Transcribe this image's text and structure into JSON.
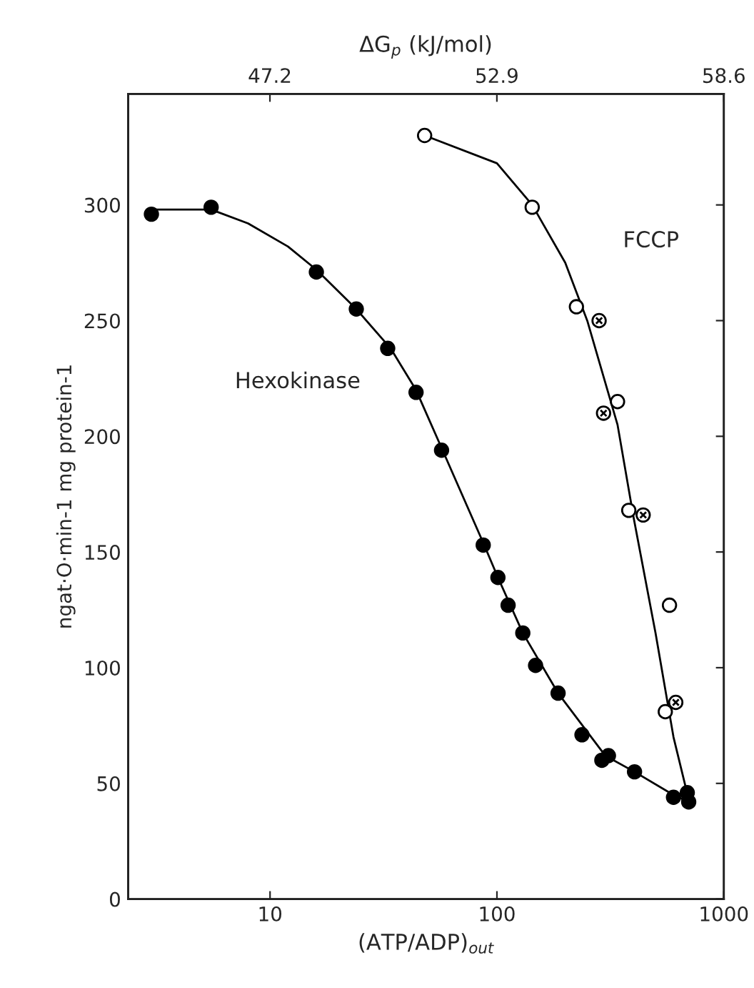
{
  "chart_data": {
    "type": "scatter",
    "xlabel": "(ATP/ADP)$_{out}$",
    "x2label": "ΔG$_{p}$ (kJ/mol)",
    "ylabel": "ngat·O·min-1 mg protein-1",
    "log": "x",
    "xlim": [
      2.37,
      1000
    ],
    "xticks": [
      10,
      100,
      1000
    ],
    "x2lim": [
      43.64,
      58.6
    ],
    "x2ticks": [
      47.2,
      52.9,
      58.6
    ],
    "ylim": [
      0,
      348
    ],
    "yticks": [
      0,
      50,
      100,
      150,
      200,
      250,
      300
    ],
    "grid": false,
    "legend": false,
    "series": [
      {
        "type": "line",
        "name": "Hexokinase",
        "color": "#000000",
        "marker": "none",
        "line_style": "solid",
        "x": [
          3,
          5.5,
          8,
          12,
          16,
          24,
          34,
          44,
          57,
          87,
          101,
          130,
          186,
          300,
          404,
          600,
          700
        ],
        "values": [
          298,
          298,
          292,
          282,
          272,
          255,
          238,
          220,
          195,
          154,
          139,
          115,
          89,
          62,
          55,
          45,
          42
        ]
      },
      {
        "type": "line",
        "name": "FCCP",
        "color": "#000000",
        "marker": "none",
        "line_style": "solid",
        "x": [
          48,
          100,
          143,
          200,
          250,
          340,
          400,
          500,
          600,
          700
        ],
        "values": [
          330,
          318,
          300,
          275,
          250,
          205,
          165,
          115,
          70,
          43
        ]
      },
      {
        "color": "#000000",
        "marker": "circle",
        "x": [
          3.0,
          5.5,
          16,
          24,
          33,
          44,
          57,
          87,
          101,
          112,
          130,
          148,
          186,
          237,
          290,
          310,
          404,
          600,
          690,
          700
        ],
        "values": [
          296,
          299,
          271,
          255,
          238,
          219,
          194,
          153,
          139,
          127,
          115,
          101,
          89,
          71,
          60,
          62,
          55,
          44,
          46,
          42
        ]
      },
      {
        "color": "#ffffff",
        "marker": "circle",
        "x": [
          48,
          143,
          224,
          340,
          381,
          576,
          552
        ],
        "values": [
          330,
          299,
          256,
          215,
          168,
          127,
          81
        ]
      },
      {
        "color": "#ffffff",
        "marker": "cross",
        "x": [
          282,
          295,
          441,
          614
        ],
        "values": [
          250,
          210,
          166,
          85
        ]
      }
    ]
  }
}
